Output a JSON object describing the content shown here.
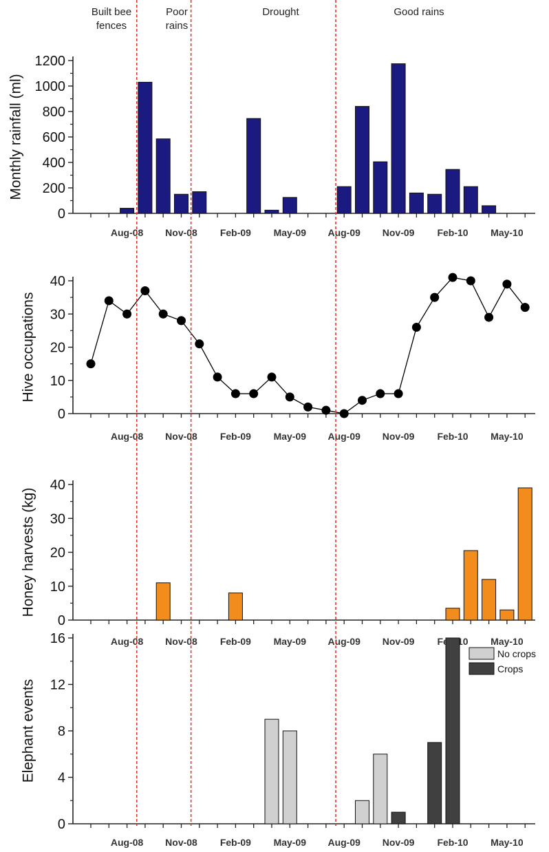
{
  "periods": {
    "labels": [
      {
        "lines": [
          "Built bee",
          "fences"
        ]
      },
      {
        "lines": [
          "Poor",
          "rains"
        ]
      },
      {
        "lines": [
          "Drought"
        ]
      },
      {
        "lines": [
          "Good rains"
        ]
      }
    ],
    "boundaries": [
      "Sep-08",
      "Dec-08",
      "Aug-09"
    ],
    "line_color": "#e8322e"
  },
  "x_axis": {
    "months": [
      "Jun-08",
      "Jul-08",
      "Aug-08",
      "Sep-08",
      "Oct-08",
      "Nov-08",
      "Dec-08",
      "Jan-09",
      "Feb-09",
      "Mar-09",
      "Apr-09",
      "May-09",
      "Jun-09",
      "Jul-09",
      "Aug-09",
      "Sep-09",
      "Oct-09",
      "Nov-09",
      "Dec-09",
      "Jan-10",
      "Feb-10",
      "Mar-10",
      "Apr-10",
      "May-10",
      "Jun-10"
    ],
    "tick_labels": [
      "Aug-08",
      "Nov-08",
      "Feb-09",
      "May-09",
      "Aug-09",
      "Nov-09",
      "Feb-10",
      "May-10"
    ]
  },
  "chart_data": [
    {
      "type": "bar",
      "ylabel": "Monthly rainfall (ml)",
      "ylim": [
        0,
        1200
      ],
      "yticks": [
        0,
        200,
        400,
        600,
        800,
        1000,
        1200
      ],
      "color": "#1a1a80",
      "x": [
        "Aug-08",
        "Sep-08",
        "Oct-08",
        "Nov-08",
        "Dec-08",
        "Jan-09",
        "Mar-09",
        "Apr-09",
        "May-09",
        "Aug-09",
        "Sep-09",
        "Oct-09",
        "Nov-09",
        "Dec-09",
        "Jan-10",
        "Feb-10",
        "Mar-10",
        "Apr-10",
        "May-10"
      ],
      "values": [
        40,
        1030,
        585,
        150,
        170,
        0,
        745,
        25,
        125,
        210,
        840,
        405,
        1175,
        160,
        150,
        345,
        210,
        60,
        0
      ]
    },
    {
      "type": "line",
      "ylabel": "Hive occupations",
      "ylim": [
        0,
        40
      ],
      "yticks": [
        0,
        10,
        20,
        30,
        40
      ],
      "color": "#000000",
      "x": [
        "Jun-08",
        "Jul-08",
        "Aug-08",
        "Sep-08",
        "Oct-08",
        "Nov-08",
        "Dec-08",
        "Jan-09",
        "Feb-09",
        "Mar-09",
        "Apr-09",
        "May-09",
        "Jun-09",
        "Jul-09",
        "Aug-09",
        "Sep-09",
        "Oct-09",
        "Nov-09",
        "Dec-09",
        "Jan-10",
        "Feb-10",
        "Mar-10",
        "Apr-10",
        "May-10",
        "Jun-10"
      ],
      "values": [
        15,
        34,
        30,
        37,
        30,
        28,
        21,
        11,
        6,
        6,
        11,
        5,
        2,
        1,
        0,
        4,
        6,
        6,
        26,
        35,
        41,
        40,
        29,
        39,
        32
      ]
    },
    {
      "type": "bar",
      "ylabel": "Honey harvests (kg)",
      "ylim": [
        0,
        40
      ],
      "yticks": [
        0,
        10,
        20,
        30,
        40
      ],
      "color": "#f28c1c",
      "x": [
        "Oct-08",
        "Feb-09",
        "Feb-10",
        "Mar-10",
        "Apr-10",
        "May-10",
        "Jun-10"
      ],
      "values": [
        11,
        8,
        3.5,
        20.5,
        12,
        3,
        39
      ]
    },
    {
      "type": "bar",
      "ylabel": "Elephant events",
      "ylim": [
        0,
        16
      ],
      "yticks": [
        0,
        4,
        8,
        12,
        16
      ],
      "legend": {
        "position": "top-right"
      },
      "series": [
        {
          "name": "No crops",
          "color": "#d0d0d0",
          "x": [
            "Apr-09",
            "May-09",
            "Sep-09",
            "Oct-09"
          ],
          "values": [
            9,
            8,
            2,
            6
          ]
        },
        {
          "name": "Crops",
          "color": "#404040",
          "x": [
            "Nov-09",
            "Jan-10",
            "Feb-10"
          ],
          "values": [
            1,
            7,
            16
          ]
        }
      ]
    }
  ]
}
